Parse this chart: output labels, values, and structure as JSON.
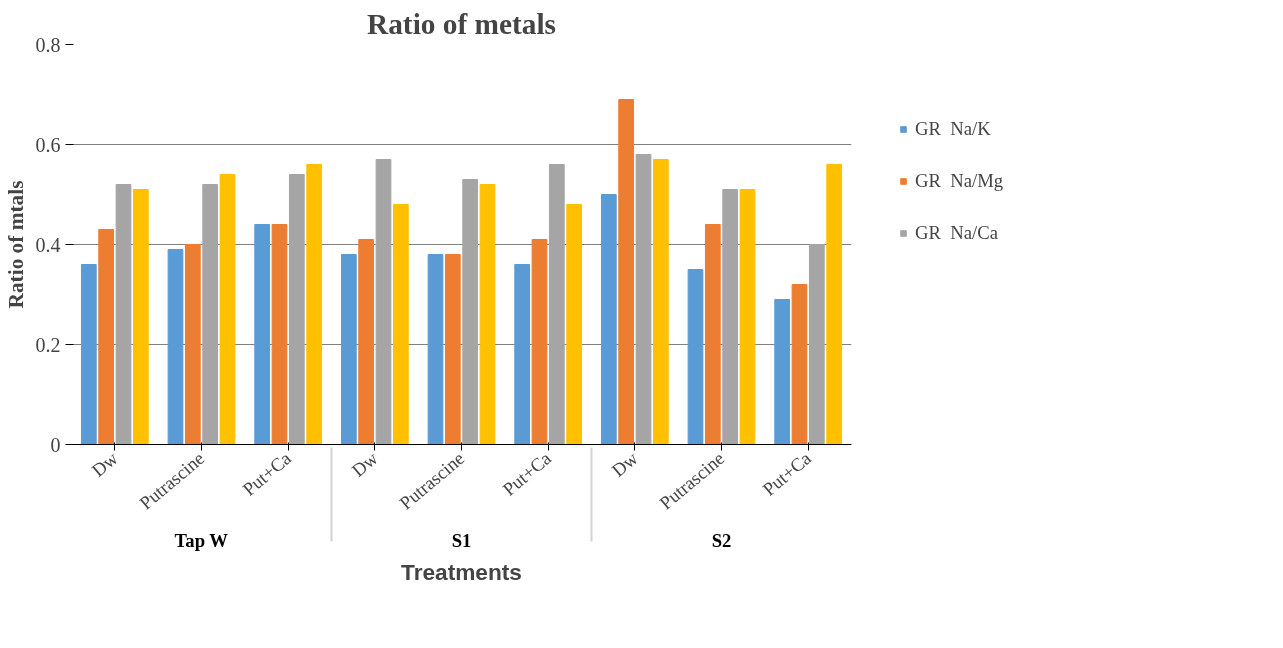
{
  "chart_data": {
    "type": "bar",
    "title": "Ratio of metals",
    "xlabel": "Treatments",
    "ylabel": "Ratio of mtals",
    "categories": [
      "Dw",
      "Putrascine",
      "Put+Ca",
      "Dw",
      "Putrascine",
      "Put+Ca",
      "Dw",
      "Putrascine",
      "Put+Ca"
    ],
    "annotations": [
      "Tap W",
      "S1",
      "S2"
    ],
    "series": [
      {
        "name": "GR  Na/K",
        "color": "#5b9bd5",
        "values": [
          0.36,
          0.39,
          0.44,
          0.38,
          0.38,
          0.36,
          0.5,
          0.35,
          0.29
        ]
      },
      {
        "name": "GR  Na/Mg",
        "color": "#ed7d31",
        "values": [
          0.43,
          0.4,
          0.44,
          0.41,
          0.38,
          0.41,
          0.69,
          0.44,
          0.32
        ]
      },
      {
        "name": "GR  Na/Ca",
        "color": "#a5a5a5",
        "values": [
          0.52,
          0.52,
          0.54,
          0.57,
          0.53,
          0.56,
          0.58,
          0.51,
          0.4
        ]
      },
      {
        "color": "#ffc000",
        "values": [
          0.51,
          0.54,
          0.56,
          0.48,
          0.52,
          0.48,
          0.57,
          0.51,
          0.56
        ]
      }
    ],
    "ylim": [
      0,
      0.8
    ],
    "yticks": [
      0,
      0.2,
      0.4,
      0.6,
      0.8
    ],
    "grid": "y",
    "legend": "right"
  }
}
